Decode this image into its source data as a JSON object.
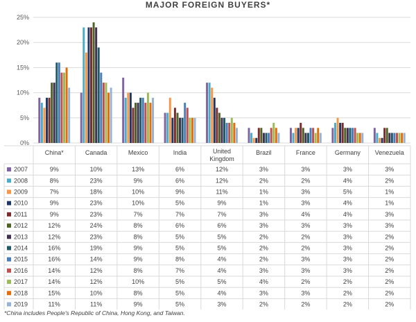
{
  "chart_data": {
    "type": "bar",
    "title": "MAJOR FOREIGN BUYERS*",
    "categories": [
      "China*",
      "Canada",
      "Mexico",
      "India",
      "United Kingdom",
      "Brazil",
      "France",
      "Germany",
      "Venezuela"
    ],
    "ylim": [
      0,
      25
    ],
    "yticks": [
      "0%",
      "5%",
      "10%",
      "15%",
      "20%",
      "25%"
    ],
    "grid": true,
    "legend_placement": "data-table",
    "series": [
      {
        "name": "2007",
        "color": "#8064a2",
        "values": [
          9,
          10,
          13,
          6,
          12,
          3,
          3,
          3,
          3
        ],
        "labels": [
          "9%",
          "10%",
          "13%",
          "6%",
          "12%",
          "3%",
          "3%",
          "3%",
          "3%"
        ]
      },
      {
        "name": "2008",
        "color": "#4bacc6",
        "values": [
          8,
          23,
          9,
          6,
          12,
          2,
          2,
          4,
          2
        ],
        "labels": [
          "8%",
          "23%",
          "9%",
          "6%",
          "12%",
          "2%",
          "2%",
          "4%",
          "2%"
        ]
      },
      {
        "name": "2009",
        "color": "#f79646",
        "values": [
          7,
          18,
          10,
          9,
          11,
          1,
          3,
          5,
          1
        ],
        "labels": [
          "7%",
          "18%",
          "10%",
          "9%",
          "11%",
          "1%",
          "3%",
          "5%",
          "1%"
        ]
      },
      {
        "name": "2010",
        "color": "#1f3864",
        "values": [
          9,
          23,
          10,
          5,
          9,
          1,
          3,
          4,
          1
        ],
        "labels": [
          "9%",
          "23%",
          "10%",
          "5%",
          "9%",
          "1%",
          "3%",
          "4%",
          "1%"
        ]
      },
      {
        "name": "2011",
        "color": "#7b2c2c",
        "values": [
          9,
          23,
          7,
          7,
          7,
          3,
          4,
          4,
          3
        ],
        "labels": [
          "9%",
          "23%",
          "7%",
          "7%",
          "7%",
          "3%",
          "4%",
          "4%",
          "3%"
        ]
      },
      {
        "name": "2012",
        "color": "#4f6228",
        "values": [
          12,
          24,
          8,
          6,
          6,
          3,
          3,
          3,
          3
        ],
        "labels": [
          "12%",
          "24%",
          "8%",
          "6%",
          "6%",
          "3%",
          "3%",
          "3%",
          "3%"
        ]
      },
      {
        "name": "2013",
        "color": "#403151",
        "values": [
          12,
          23,
          8,
          5,
          5,
          2,
          2,
          3,
          2
        ],
        "labels": [
          "12%",
          "23%",
          "8%",
          "5%",
          "5%",
          "2%",
          "2%",
          "3%",
          "2%"
        ]
      },
      {
        "name": "2014",
        "color": "#215967",
        "values": [
          16,
          19,
          9,
          5,
          5,
          2,
          2,
          3,
          2
        ],
        "labels": [
          "16%",
          "19%",
          "9%",
          "5%",
          "5%",
          "2%",
          "2%",
          "3%",
          "2%"
        ]
      },
      {
        "name": "2015",
        "color": "#4a7ebb",
        "values": [
          16,
          14,
          9,
          8,
          4,
          2,
          3,
          3,
          2
        ],
        "labels": [
          "16%",
          "14%",
          "9%",
          "8%",
          "4%",
          "2%",
          "3%",
          "3%",
          "2%"
        ]
      },
      {
        "name": "2016",
        "color": "#c0504d",
        "values": [
          14,
          12,
          8,
          7,
          4,
          3,
          3,
          3,
          2
        ],
        "labels": [
          "14%",
          "12%",
          "8%",
          "7%",
          "4%",
          "3%",
          "3%",
          "3%",
          "2%"
        ]
      },
      {
        "name": "2017",
        "color": "#9bbb59",
        "values": [
          14,
          12,
          10,
          5,
          5,
          4,
          2,
          2,
          2
        ],
        "labels": [
          "14%",
          "12%",
          "10%",
          "5%",
          "5%",
          "4%",
          "2%",
          "2%",
          "2%"
        ]
      },
      {
        "name": "2018",
        "color": "#e46c0a",
        "values": [
          15,
          10,
          8,
          5,
          4,
          3,
          3,
          2,
          2
        ],
        "labels": [
          "15%",
          "10%",
          "8%",
          "5%",
          "4%",
          "3%",
          "3%",
          "2%",
          "2%"
        ]
      },
      {
        "name": "2019",
        "color": "#95b3d7",
        "values": [
          11,
          11,
          9,
          5,
          3,
          2,
          2,
          2,
          2
        ],
        "labels": [
          "11%",
          "11%",
          "9%",
          "5%",
          "3%",
          "2%",
          "2%",
          "2%",
          "2%"
        ]
      }
    ],
    "footnote": "*China includes People's Republic of China, Hong Kong, and Taiwan."
  }
}
